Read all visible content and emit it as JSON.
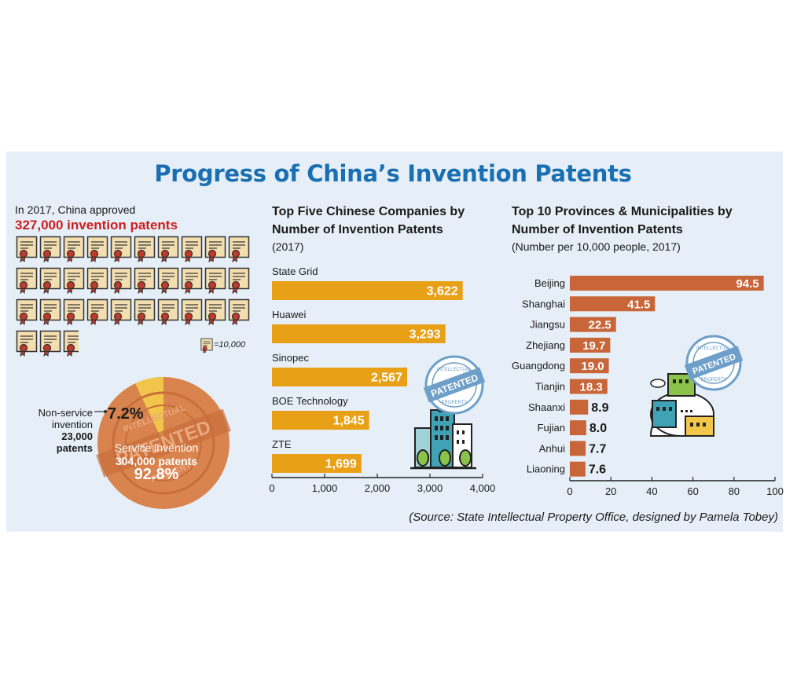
{
  "title": "Progress of China’s Invention Patents",
  "intro": {
    "line1": "In 2017, China approved",
    "line2": "327,000 invention patents",
    "legend_text": "=10,000",
    "icon_name": "patent-certificate-icon",
    "icon_count_full": 32,
    "icon_partial_fraction": 0.7,
    "icon_unit": 10000
  },
  "pie": {
    "nonservice_label": "Non-service invention",
    "nonservice_count": "23,000 patents",
    "nonservice_pct": "7.2%",
    "service_label": "Service invention",
    "service_count": "304,000 patents",
    "service_pct": "92.8%",
    "stamp_text_top": "INTELLECTUAL",
    "stamp_text_mid": "PATENTED",
    "stamp_text_bottom": "PROPERTY"
  },
  "companies": {
    "title": "Top Five Chinese Companies by Number of Invention Patents",
    "subtitle": "(2017)"
  },
  "provinces": {
    "title": "Top 10 Provinces & Municipalities by Number of Invention Patents",
    "subtitle": "(Number per 10,000 people, 2017)"
  },
  "badge": {
    "top": "INTELLECTUAL",
    "mid": "PATENTED",
    "bottom": "PROPERTY"
  },
  "source": "(Source: State Intellectual Property Office, designed by Pamela Tobey)",
  "colors": {
    "title_blue": "#1a6fb3",
    "highlight_red": "#cc1f1f",
    "company_bar": "#e8a016",
    "province_bar": "#c8663a",
    "pie_main": "#d9844e",
    "pie_slice": "#f2c64a",
    "panel_bg": "#e6eff7"
  },
  "chart_data": [
    {
      "type": "bar",
      "orientation": "horizontal",
      "title": "Top Five Chinese Companies by Number of Invention Patents",
      "subtitle": "(2017)",
      "categories": [
        "State Grid",
        "Huawei",
        "Sinopec",
        "BOE Technology",
        "ZTE"
      ],
      "values": [
        3622,
        3293,
        2567,
        1845,
        1699
      ],
      "value_labels": [
        "3,622",
        "3,293",
        "2,567",
        "1,845",
        "1,699"
      ],
      "xlim": [
        0,
        4000
      ],
      "xticks": [
        0,
        1000,
        2000,
        3000,
        4000
      ],
      "xtick_labels": [
        "0",
        "1,000",
        "2,000",
        "3,000",
        "4,000"
      ],
      "grid": false,
      "category_label_position": "above-bar"
    },
    {
      "type": "bar",
      "orientation": "horizontal",
      "title": "Top 10 Provinces & Municipalities by Number of Invention Patents",
      "subtitle": "(Number per 10,000 people, 2017)",
      "categories": [
        "Beijing",
        "Shanghai",
        "Jiangsu",
        "Zhejiang",
        "Guangdong",
        "Tianjin",
        "Shaanxi",
        "Fujian",
        "Anhui",
        "Liaoning"
      ],
      "values": [
        94.5,
        41.5,
        22.5,
        19.7,
        19.0,
        18.3,
        8.9,
        8.0,
        7.7,
        7.6
      ],
      "value_labels": [
        "94.5",
        "41.5",
        "22.5",
        "19.7",
        "19.0",
        "18.3",
        "8.9",
        "8.0",
        "7.7",
        "7.6"
      ],
      "xlim": [
        0,
        100
      ],
      "xticks": [
        0,
        20,
        40,
        60,
        80,
        100
      ],
      "xtick_labels": [
        "0",
        "20",
        "40",
        "60",
        "80",
        "100"
      ],
      "grid": false,
      "category_label_position": "left"
    },
    {
      "type": "pie",
      "title": "",
      "categories": [
        "Non-service invention",
        "Service invention"
      ],
      "values": [
        23000,
        304000
      ],
      "percent_labels": [
        "7.2%",
        "92.8%"
      ]
    }
  ]
}
